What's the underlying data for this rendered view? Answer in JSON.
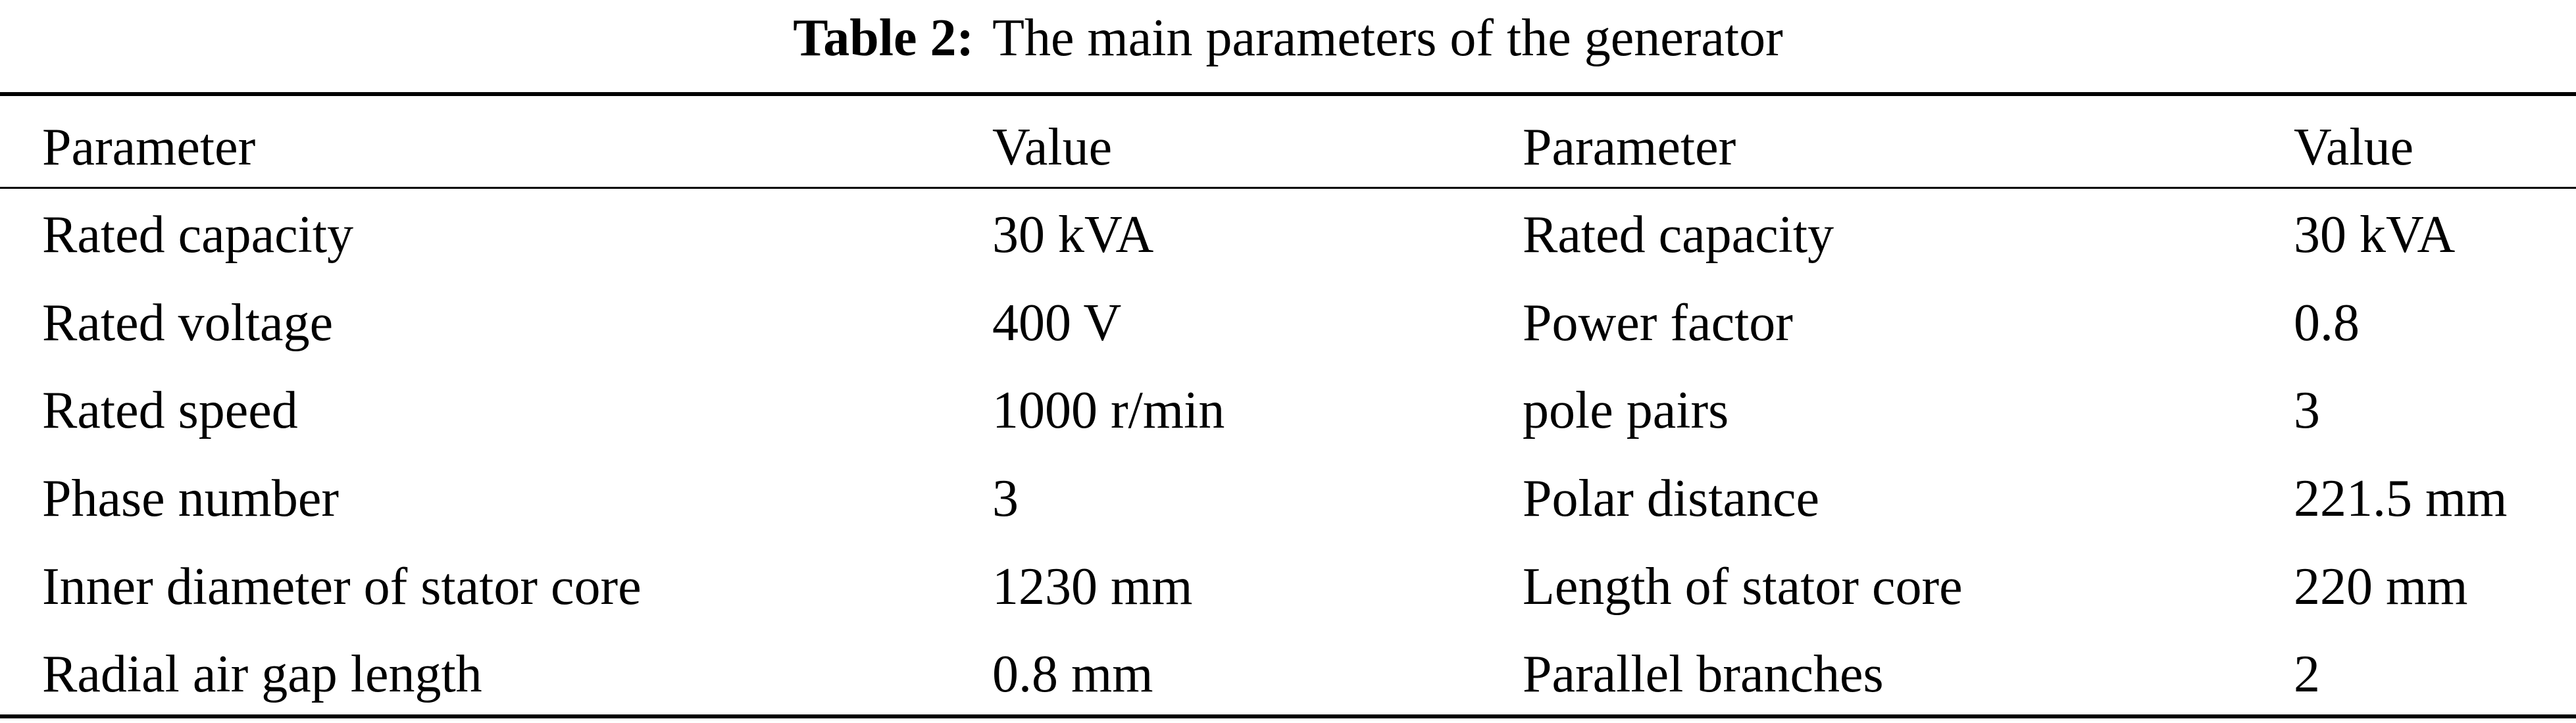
{
  "caption": {
    "label": "Table 2:",
    "title": "The main parameters of the generator"
  },
  "table": {
    "headers": [
      "Parameter",
      "Value",
      "Parameter",
      "Value"
    ],
    "rows": [
      [
        "Rated capacity",
        "30 kVA",
        "Rated capacity",
        "30 kVA"
      ],
      [
        "Rated voltage",
        "400 V",
        "Power factor",
        "0.8"
      ],
      [
        "Rated speed",
        "1000 r/min",
        "pole pairs",
        "3"
      ],
      [
        "Phase number",
        "3",
        "Polar distance",
        "221.5 mm"
      ],
      [
        "Inner diameter of stator core",
        "1230 mm",
        "Length of stator core",
        "220 mm"
      ],
      [
        "Radial air gap length",
        "0.8 mm",
        "Parallel branches",
        "2"
      ]
    ]
  }
}
